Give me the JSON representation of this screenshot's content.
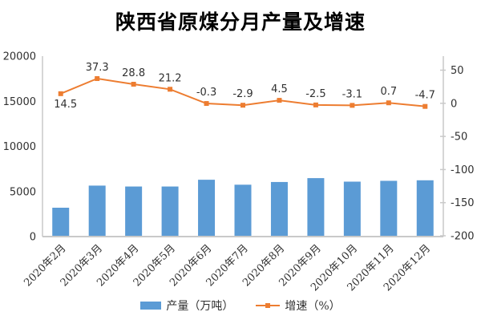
{
  "colors": {
    "bar": "#5B9BD5",
    "line": "#ED7D31",
    "axis_line": "#C9C9C9",
    "text": "#303030",
    "background": "#FFFFFF"
  },
  "legend": {
    "items": [
      {
        "label": "产量（万吨）",
        "swatch": "bar"
      },
      {
        "label": "增速（%）",
        "swatch": "line"
      }
    ]
  },
  "chart_data": {
    "type": "bar+line",
    "title": "陕西省原煤分月产量及增速",
    "categories": [
      "2020年2月",
      "2020年3月",
      "2020年4月",
      "2020年5月",
      "2020年6月",
      "2020年7月",
      "2020年8月",
      "2020年9月",
      "2020年10月",
      "2020年11月",
      "2020年12月"
    ],
    "series": [
      {
        "name": "产量（万吨）",
        "type": "bar",
        "axis": "left",
        "values": [
          3200,
          5650,
          5550,
          5550,
          6300,
          5750,
          6050,
          6480,
          6090,
          6180,
          6240
        ]
      },
      {
        "name": "增速（%）",
        "type": "line",
        "axis": "right",
        "values": [
          14.5,
          37.3,
          28.8,
          21.2,
          -0.3,
          -2.9,
          4.5,
          -2.5,
          -3.1,
          0.7,
          -4.7
        ],
        "data_labels": true,
        "label_positions": [
          "below",
          "above",
          "above",
          "above",
          "above",
          "above",
          "above",
          "above",
          "above",
          "above",
          "above"
        ]
      }
    ],
    "left_axis": {
      "min": 0,
      "max": 20000,
      "step": 5000,
      "ticks": [
        0,
        5000,
        10000,
        15000,
        20000
      ]
    },
    "right_axis": {
      "min": -200,
      "max": 50,
      "step": 50,
      "ticks": [
        50,
        0,
        -50,
        -100,
        -150,
        -200
      ]
    },
    "grid": false,
    "legend_position": "bottom"
  }
}
